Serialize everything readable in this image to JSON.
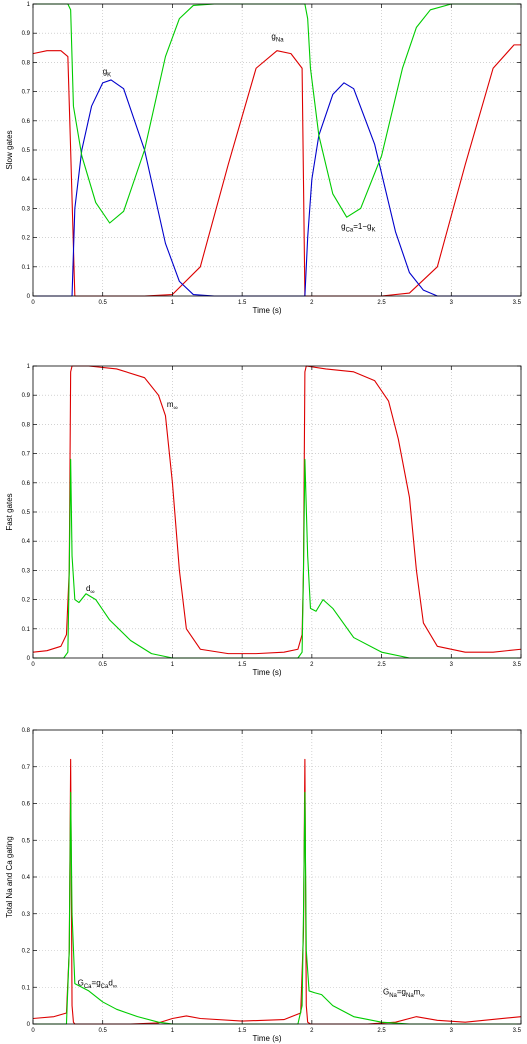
{
  "chart_data": [
    {
      "type": "line",
      "xlabel": "Time (s)",
      "ylabel": "Slow gates",
      "xlim": [
        0,
        3.5
      ],
      "ylim": [
        0,
        1
      ],
      "xticks": [
        {
          "v": 0,
          "label": "0"
        },
        {
          "v": 0.5,
          "label": "0.5"
        },
        {
          "v": 1,
          "label": "1"
        },
        {
          "v": 1.5,
          "label": "1.5"
        },
        {
          "v": 2,
          "label": "2"
        },
        {
          "v": 2.5,
          "label": "2.5"
        },
        {
          "v": 3,
          "label": "3"
        },
        {
          "v": 3.5,
          "label": "3.5"
        }
      ],
      "yticks": [
        {
          "v": 0,
          "label": "0"
        },
        {
          "v": 0.1,
          "label": "0.1"
        },
        {
          "v": 0.2,
          "label": "0.2"
        },
        {
          "v": 0.3,
          "label": "0.3"
        },
        {
          "v": 0.4,
          "label": "0.4"
        },
        {
          "v": 0.5,
          "label": "0.5"
        },
        {
          "v": 0.6,
          "label": "0.6"
        },
        {
          "v": 0.7,
          "label": "0.7"
        },
        {
          "v": 0.8,
          "label": "0.8"
        },
        {
          "v": 0.9,
          "label": "0.9"
        },
        {
          "v": 1,
          "label": "1"
        }
      ],
      "grid": true,
      "series": [
        {
          "color": "#dd0000",
          "x": [
            0,
            0.1,
            0.2,
            0.25,
            0.27,
            0.3,
            0.4,
            0.6,
            0.8,
            1.0,
            1.2,
            1.4,
            1.6,
            1.75,
            1.85,
            1.93,
            1.95,
            1.97,
            2.1,
            2.3,
            2.5,
            2.7,
            2.9,
            3.1,
            3.3,
            3.45,
            3.5
          ],
          "y": [
            0.83,
            0.84,
            0.84,
            0.82,
            0.5,
            0,
            0,
            0,
            0,
            0.005,
            0.1,
            0.45,
            0.78,
            0.84,
            0.83,
            0.78,
            0,
            0,
            0,
            0,
            0,
            0.01,
            0.1,
            0.45,
            0.78,
            0.86,
            0.86
          ]
        },
        {
          "color": "#0000cc",
          "x": [
            0,
            0.26,
            0.28,
            0.3,
            0.35,
            0.42,
            0.5,
            0.56,
            0.65,
            0.8,
            0.95,
            1.05,
            1.15,
            1.3,
            1.95,
            1.97,
            2.0,
            2.05,
            2.15,
            2.23,
            2.3,
            2.45,
            2.6,
            2.7,
            2.8,
            2.9,
            3.5
          ],
          "y": [
            0,
            0,
            0,
            0.3,
            0.5,
            0.65,
            0.73,
            0.74,
            0.71,
            0.5,
            0.18,
            0.05,
            0.005,
            0,
            0,
            0.2,
            0.4,
            0.55,
            0.69,
            0.73,
            0.71,
            0.52,
            0.22,
            0.08,
            0.02,
            0,
            0
          ]
        },
        {
          "color": "#00cc00",
          "x": [
            0,
            0.25,
            0.27,
            0.29,
            0.35,
            0.45,
            0.55,
            0.65,
            0.8,
            0.95,
            1.05,
            1.15,
            1.3,
            1.95,
            1.97,
            1.99,
            2.05,
            2.15,
            2.25,
            2.35,
            2.5,
            2.65,
            2.75,
            2.85,
            3.0,
            3.5
          ],
          "y": [
            1,
            1,
            0.98,
            0.65,
            0.48,
            0.32,
            0.25,
            0.29,
            0.5,
            0.82,
            0.95,
            0.995,
            1,
            1,
            0.95,
            0.78,
            0.55,
            0.35,
            0.27,
            0.3,
            0.48,
            0.78,
            0.92,
            0.98,
            1,
            1
          ]
        }
      ],
      "annotations": [
        {
          "x": 0.5,
          "y": 0.76,
          "base": "g",
          "sub": "K",
          "tail": "",
          "sub2": ""
        },
        {
          "x": 1.71,
          "y": 0.88,
          "base": "g",
          "sub": "Na",
          "tail": "",
          "sub2": ""
        },
        {
          "x": 2.21,
          "y": 0.23,
          "base": "g",
          "sub": "Ca",
          "tail": "=1−g",
          "sub2": "K"
        }
      ]
    },
    {
      "type": "line",
      "xlabel": "Time (s)",
      "ylabel": "Fast gates",
      "xlim": [
        0,
        3.5
      ],
      "ylim": [
        0,
        1
      ],
      "xticks": [
        {
          "v": 0,
          "label": "0"
        },
        {
          "v": 0.5,
          "label": "0.5"
        },
        {
          "v": 1,
          "label": "1"
        },
        {
          "v": 1.5,
          "label": "1.5"
        },
        {
          "v": 2,
          "label": "2"
        },
        {
          "v": 2.5,
          "label": "2.5"
        },
        {
          "v": 3,
          "label": "3"
        },
        {
          "v": 3.5,
          "label": "3.5"
        }
      ],
      "yticks": [
        {
          "v": 0,
          "label": "0"
        },
        {
          "v": 0.1,
          "label": "0.1"
        },
        {
          "v": 0.2,
          "label": "0.2"
        },
        {
          "v": 0.3,
          "label": "0.3"
        },
        {
          "v": 0.4,
          "label": "0.4"
        },
        {
          "v": 0.5,
          "label": "0.5"
        },
        {
          "v": 0.6,
          "label": "0.6"
        },
        {
          "v": 0.7,
          "label": "0.7"
        },
        {
          "v": 0.8,
          "label": "0.8"
        },
        {
          "v": 0.9,
          "label": "0.9"
        },
        {
          "v": 1,
          "label": "1"
        }
      ],
      "grid": true,
      "series": [
        {
          "color": "#dd0000",
          "x": [
            0,
            0.1,
            0.2,
            0.24,
            0.26,
            0.27,
            0.28,
            0.4,
            0.6,
            0.8,
            0.9,
            0.95,
            1.0,
            1.05,
            1.1,
            1.2,
            1.4,
            1.6,
            1.8,
            1.9,
            1.93,
            1.94,
            1.95,
            1.96,
            2.1,
            2.3,
            2.45,
            2.55,
            2.62,
            2.7,
            2.75,
            2.8,
            2.9,
            3.1,
            3.3,
            3.5
          ],
          "y": [
            0.02,
            0.025,
            0.04,
            0.08,
            0.3,
            0.98,
            1,
            1,
            0.99,
            0.96,
            0.9,
            0.83,
            0.6,
            0.3,
            0.1,
            0.03,
            0.015,
            0.015,
            0.02,
            0.03,
            0.08,
            0.3,
            0.98,
            1,
            0.99,
            0.98,
            0.95,
            0.88,
            0.75,
            0.55,
            0.3,
            0.12,
            0.04,
            0.02,
            0.02,
            0.03
          ]
        },
        {
          "color": "#00cc00",
          "x": [
            0,
            0.22,
            0.25,
            0.26,
            0.27,
            0.28,
            0.3,
            0.33,
            0.38,
            0.45,
            0.55,
            0.7,
            0.85,
            1.0,
            1.1,
            1.9,
            1.93,
            1.94,
            1.95,
            1.97,
            1.99,
            2.03,
            2.08,
            2.15,
            2.3,
            2.5,
            2.7,
            2.8,
            3.5
          ],
          "y": [
            0,
            0,
            0.02,
            0.3,
            0.68,
            0.35,
            0.2,
            0.19,
            0.22,
            0.2,
            0.13,
            0.06,
            0.015,
            0,
            0,
            0,
            0.02,
            0.3,
            0.68,
            0.35,
            0.17,
            0.16,
            0.2,
            0.17,
            0.07,
            0.02,
            0,
            0,
            0
          ]
        }
      ],
      "annotations": [
        {
          "x": 0.38,
          "y": 0.23,
          "base": "d",
          "sub": "∞",
          "tail": "",
          "sub2": ""
        },
        {
          "x": 0.96,
          "y": 0.86,
          "base": "m",
          "sub": "∞",
          "tail": "",
          "sub2": ""
        }
      ]
    },
    {
      "type": "line",
      "xlabel": "Time (s)",
      "ylabel": "Total Na and Ca gating",
      "xlim": [
        0,
        3.5
      ],
      "ylim": [
        0,
        0.8
      ],
      "xticks": [
        {
          "v": 0,
          "label": "0"
        },
        {
          "v": 0.5,
          "label": "0.5"
        },
        {
          "v": 1,
          "label": "1"
        },
        {
          "v": 1.5,
          "label": "1.5"
        },
        {
          "v": 2,
          "label": "2"
        },
        {
          "v": 2.5,
          "label": "2.5"
        },
        {
          "v": 3,
          "label": "3"
        },
        {
          "v": 3.5,
          "label": "3.5"
        }
      ],
      "yticks": [
        {
          "v": 0,
          "label": "0"
        },
        {
          "v": 0.1,
          "label": "0.1"
        },
        {
          "v": 0.2,
          "label": "0.2"
        },
        {
          "v": 0.3,
          "label": "0.3"
        },
        {
          "v": 0.4,
          "label": "0.4"
        },
        {
          "v": 0.5,
          "label": "0.5"
        },
        {
          "v": 0.6,
          "label": "0.6"
        },
        {
          "v": 0.7,
          "label": "0.7"
        },
        {
          "v": 0.8,
          "label": "0.8"
        }
      ],
      "grid": true,
      "series": [
        {
          "color": "#dd0000",
          "x": [
            0,
            0.15,
            0.24,
            0.26,
            0.27,
            0.28,
            0.29,
            0.3,
            0.35,
            0.5,
            0.7,
            0.9,
            1.0,
            1.1,
            1.2,
            1.5,
            1.8,
            1.92,
            1.94,
            1.95,
            1.96,
            1.97,
            1.99,
            2.05,
            2.2,
            2.4,
            2.6,
            2.75,
            2.9,
            3.1,
            3.5
          ],
          "y": [
            0.015,
            0.02,
            0.03,
            0.2,
            0.72,
            0.05,
            0.005,
            0,
            0,
            0,
            0,
            0.003,
            0.015,
            0.022,
            0.015,
            0.008,
            0.012,
            0.03,
            0.25,
            0.72,
            0.05,
            0.005,
            0,
            0,
            0,
            0,
            0.005,
            0.02,
            0.01,
            0.005,
            0.02
          ]
        },
        {
          "color": "#00cc00",
          "x": [
            0,
            0.24,
            0.26,
            0.27,
            0.28,
            0.3,
            0.35,
            0.4,
            0.5,
            0.6,
            0.75,
            0.9,
            1.0,
            1.1,
            1.9,
            1.93,
            1.94,
            1.95,
            1.96,
            1.98,
            2.02,
            2.07,
            2.15,
            2.3,
            2.5,
            2.7,
            2.8,
            3.5
          ],
          "y": [
            0,
            0,
            0.2,
            0.63,
            0.3,
            0.11,
            0.1,
            0.09,
            0.06,
            0.04,
            0.02,
            0.005,
            0,
            0,
            0,
            0.05,
            0.3,
            0.63,
            0.2,
            0.09,
            0.085,
            0.08,
            0.05,
            0.02,
            0.005,
            0,
            0,
            0
          ]
        }
      ],
      "annotations": [
        {
          "x": 0.32,
          "y": 0.105,
          "base": "G",
          "sub": "Ca",
          "tail": "=g",
          "sub2": "Ca",
          "tail2": "d",
          "sub3": "∞"
        },
        {
          "x": 2.51,
          "y": 0.08,
          "base": "G",
          "sub": "Na",
          "tail": "=g",
          "sub2": "Na",
          "tail2": "m",
          "sub3": "∞"
        }
      ]
    }
  ]
}
